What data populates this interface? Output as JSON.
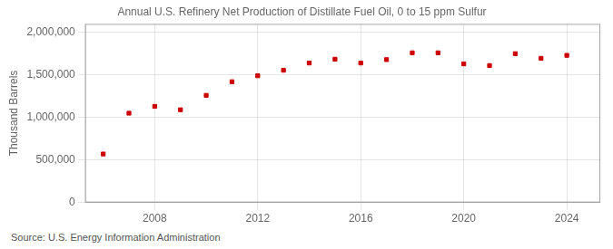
{
  "chart_data": {
    "type": "scatter",
    "title": "Annual U.S. Refinery Net Production of Distillate Fuel Oil, 0 to 15 ppm Sulfur",
    "ylabel": "Thousand Barrels",
    "annotations": [
      "Source: U.S. Energy Information Administration"
    ],
    "x": [
      2006,
      2007,
      2008,
      2009,
      2010,
      2011,
      2012,
      2013,
      2014,
      2015,
      2016,
      2017,
      2018,
      2019,
      2020,
      2021,
      2022,
      2023,
      2024
    ],
    "values": [
      570000,
      1050000,
      1130000,
      1090000,
      1260000,
      1420000,
      1490000,
      1555000,
      1640000,
      1685000,
      1640000,
      1680000,
      1760000,
      1760000,
      1630000,
      1610000,
      1750000,
      1695000,
      1730000
    ],
    "color": "#cc0000",
    "marker": "square",
    "xlim": [
      2005.3,
      2025.3
    ],
    "xticks": [
      2008,
      2012,
      2016,
      2020,
      2024
    ],
    "ylim": [
      0,
      2100000
    ],
    "yticks": [
      0,
      {
        "value": 500000,
        "label": "500,000"
      },
      {
        "value": 1000000,
        "label": "1,000,000"
      },
      {
        "value": 1500000,
        "label": "1,500,000"
      },
      {
        "value": 2000000,
        "label": "2,000,000"
      }
    ],
    "grid": true
  }
}
